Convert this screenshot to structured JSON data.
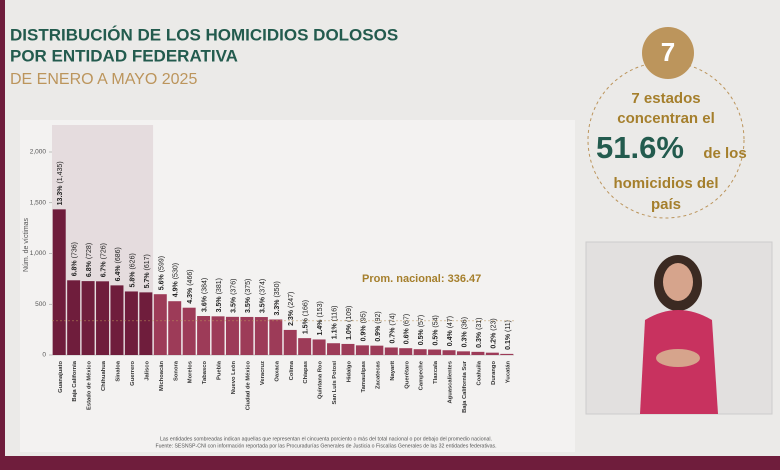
{
  "chart_data": {
    "type": "bar",
    "title_lines": [
      "DISTRIBUCIÓN DE LOS HOMICIDIOS DOLOSOS",
      "POR ENTIDAD FEDERATIVA"
    ],
    "subtitle": "DE ENERO A MAYO 2025",
    "y_label": "Núm. de víctimas",
    "categories": [
      "Guanajuato",
      "Baja California",
      "Estado de México",
      "Chihuahua",
      "Sinaloa",
      "Guerrero",
      "Jalisco",
      "Michoacán",
      "Sonora",
      "Morelos",
      "Tabasco",
      "Puebla",
      "Nuevo León",
      "Ciudad de México",
      "Veracruz",
      "Oaxaca",
      "Colima",
      "Chiapas",
      "Quintana Roo",
      "San Luis Potosí",
      "Hidalgo",
      "Tamaulipas",
      "Zacatecas",
      "Nayarit",
      "Querétaro",
      "Campeche",
      "Tlaxcala",
      "Aguascalientes",
      "Baja California Sur",
      "Coahuila",
      "Durango",
      "Yucatán"
    ],
    "values": [
      1435,
      736,
      728,
      726,
      686,
      626,
      617,
      599,
      530,
      466,
      384,
      381,
      376,
      375,
      374,
      350,
      247,
      166,
      153,
      116,
      109,
      95,
      92,
      74,
      67,
      57,
      54,
      47,
      36,
      31,
      23,
      11
    ],
    "percent_labels": [
      "13.3%",
      "6.8%",
      "6.8%",
      "6.7%",
      "6.4%",
      "5.8%",
      "5.7%",
      "5.6%",
      "4.9%",
      "4.3%",
      "3.6%",
      "3.5%",
      "3.5%",
      "3.5%",
      "3.5%",
      "3.3%",
      "2.3%",
      "1.5%",
      "1.4%",
      "1.1%",
      "1.0%",
      "0.9%",
      "0.9%",
      "0.7%",
      "0.6%",
      "0.5%",
      "0.5%",
      "0.4%",
      "0.3%",
      "0.3%",
      "0.2%",
      "0.1%"
    ],
    "value_labels": [
      "(1,435)",
      "(736)",
      "(728)",
      "(726)",
      "(686)",
      "(626)",
      "(617)",
      "(599)",
      "(530)",
      "(466)",
      "(384)",
      "(381)",
      "(376)",
      "(375)",
      "(374)",
      "(350)",
      "(247)",
      "(166)",
      "(153)",
      "(116)",
      "(109)",
      "(95)",
      "(92)",
      "(74)",
      "(67)",
      "(57)",
      "(54)",
      "(47)",
      "(36)",
      "(31)",
      "(23)",
      "(11)"
    ],
    "colors": {
      "highlight": "#6f1d3c",
      "rest": "#9d3b58"
    },
    "ylim": [
      0,
      2000
    ],
    "yticks": [
      0,
      500,
      {
        "value": 1000,
        "label": "1,000"
      },
      {
        "value": 1500,
        "label": "1,500"
      },
      {
        "value": 2000,
        "label": "2,000"
      }
    ],
    "average": {
      "label": "Prom. nacional:",
      "value": 336.47
    },
    "footnotes": [
      "Las entidades sombreadas indican aquellas que representan el cincuenta porciento o más del total nacional o por debajo del promedio nacional.",
      "Fuente: SESNSP-CNI con información reportada por las Procuradurías Generales de Justicia o Fiscalías Generales de las 32 entidades federativas."
    ],
    "callout": {
      "count": "7",
      "lines_top": [
        "7 estados",
        "concentran el"
      ],
      "big": "51.6%",
      "big_after": "de los",
      "lines_bottom": [
        "homicidios del",
        "país"
      ]
    }
  }
}
